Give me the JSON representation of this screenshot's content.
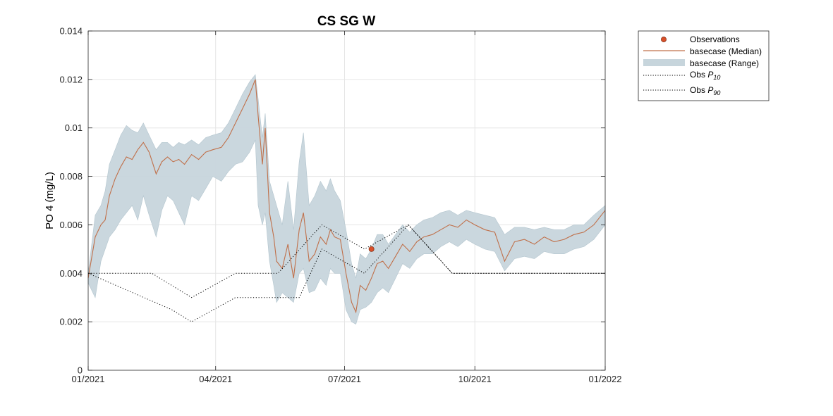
{
  "chart_data": {
    "type": "line",
    "title": "CS SG W",
    "xlabel": "",
    "ylabel": "PO 4 (mg/L)",
    "xlim": [
      "2021-01-01",
      "2022-01-01"
    ],
    "ylim": [
      0,
      0.014
    ],
    "x_ticks": [
      {
        "date": "2021-01-01",
        "label": "01/2021"
      },
      {
        "date": "2021-04-01",
        "label": "04/2021"
      },
      {
        "date": "2021-07-01",
        "label": "07/2021"
      },
      {
        "date": "2021-10-01",
        "label": "10/2021"
      },
      {
        "date": "2022-01-01",
        "label": "01/2022"
      }
    ],
    "y_ticks": [
      {
        "value": 0,
        "label": "0"
      },
      {
        "value": 0.002,
        "label": "0.002"
      },
      {
        "value": 0.004,
        "label": "0.004"
      },
      {
        "value": 0.006,
        "label": "0.006"
      },
      {
        "value": 0.008,
        "label": "0.008"
      },
      {
        "value": 0.01,
        "label": "0.01"
      },
      {
        "value": 0.012,
        "label": "0.012"
      },
      {
        "value": 0.014,
        "label": "0.014"
      }
    ],
    "grid": true,
    "legend_position": "outside-top-right",
    "colors": {
      "median": "#c0704a",
      "range": "#c7d5dc",
      "observation": "#d9502a",
      "obs_percentile": "#000000",
      "grid": "#e5e5e5"
    },
    "legend": {
      "observations": "Observations",
      "median": "basecase (Median)",
      "range": "basecase (Range)",
      "p10_prefix": "Obs ",
      "p10_symbol": "P",
      "p10_subscript": "10",
      "p90_prefix": "Obs ",
      "p90_symbol": "P",
      "p90_subscript": "90"
    },
    "series": [
      {
        "name": "basecase (Median)",
        "x": [
          "2021-01-01",
          "2021-01-06",
          "2021-01-10",
          "2021-01-13",
          "2021-01-16",
          "2021-01-20",
          "2021-01-24",
          "2021-01-28",
          "2021-02-01",
          "2021-02-05",
          "2021-02-09",
          "2021-02-13",
          "2021-02-18",
          "2021-02-22",
          "2021-02-26",
          "2021-03-02",
          "2021-03-06",
          "2021-03-10",
          "2021-03-15",
          "2021-03-20",
          "2021-03-25",
          "2021-03-30",
          "2021-04-05",
          "2021-04-10",
          "2021-04-15",
          "2021-04-20",
          "2021-04-25",
          "2021-04-29",
          "2021-05-01",
          "2021-05-04",
          "2021-05-06",
          "2021-05-09",
          "2021-05-12",
          "2021-05-14",
          "2021-05-18",
          "2021-05-22",
          "2021-05-26",
          "2021-05-30",
          "2021-06-02",
          "2021-06-06",
          "2021-06-10",
          "2021-06-14",
          "2021-06-18",
          "2021-06-21",
          "2021-06-24",
          "2021-06-28",
          "2021-07-02",
          "2021-07-06",
          "2021-07-09",
          "2021-07-12",
          "2021-07-16",
          "2021-07-20",
          "2021-07-24",
          "2021-07-28",
          "2021-08-01",
          "2021-08-06",
          "2021-08-11",
          "2021-08-16",
          "2021-08-21",
          "2021-08-26",
          "2021-09-01",
          "2021-09-07",
          "2021-09-13",
          "2021-09-19",
          "2021-09-25",
          "2021-10-01",
          "2021-10-08",
          "2021-10-15",
          "2021-10-22",
          "2021-10-29",
          "2021-11-05",
          "2021-11-12",
          "2021-11-19",
          "2021-11-26",
          "2021-12-03",
          "2021-12-10",
          "2021-12-17",
          "2021-12-24",
          "2022-01-01"
        ],
        "y": [
          0.0038,
          0.0055,
          0.006,
          0.0062,
          0.0072,
          0.0079,
          0.0084,
          0.0088,
          0.0087,
          0.0091,
          0.0094,
          0.009,
          0.0081,
          0.0086,
          0.0088,
          0.0086,
          0.0087,
          0.0085,
          0.0089,
          0.0087,
          0.009,
          0.0091,
          0.0092,
          0.0096,
          0.0102,
          0.0108,
          0.0114,
          0.012,
          0.0105,
          0.0085,
          0.01,
          0.0065,
          0.0055,
          0.0045,
          0.0042,
          0.0052,
          0.0038,
          0.0058,
          0.0065,
          0.0045,
          0.0048,
          0.0055,
          0.0052,
          0.0058,
          0.0055,
          0.0054,
          0.004,
          0.0028,
          0.0024,
          0.0035,
          0.0033,
          0.0038,
          0.0044,
          0.0045,
          0.0042,
          0.0047,
          0.0052,
          0.0049,
          0.0053,
          0.0055,
          0.0056,
          0.0058,
          0.006,
          0.0059,
          0.0062,
          0.006,
          0.0058,
          0.0057,
          0.0045,
          0.0053,
          0.0054,
          0.0052,
          0.0055,
          0.0053,
          0.0054,
          0.0056,
          0.0057,
          0.006,
          0.0066
        ]
      },
      {
        "name": "basecase (Range)",
        "x": [
          "2021-01-01",
          "2021-01-06",
          "2021-01-10",
          "2021-01-13",
          "2021-01-16",
          "2021-01-20",
          "2021-01-24",
          "2021-01-28",
          "2021-02-01",
          "2021-02-05",
          "2021-02-09",
          "2021-02-13",
          "2021-02-18",
          "2021-02-22",
          "2021-02-26",
          "2021-03-02",
          "2021-03-06",
          "2021-03-10",
          "2021-03-15",
          "2021-03-20",
          "2021-03-25",
          "2021-03-30",
          "2021-04-05",
          "2021-04-10",
          "2021-04-15",
          "2021-04-20",
          "2021-04-25",
          "2021-04-29",
          "2021-05-01",
          "2021-05-04",
          "2021-05-06",
          "2021-05-09",
          "2021-05-12",
          "2021-05-14",
          "2021-05-18",
          "2021-05-22",
          "2021-05-26",
          "2021-05-30",
          "2021-06-02",
          "2021-06-06",
          "2021-06-10",
          "2021-06-14",
          "2021-06-18",
          "2021-06-21",
          "2021-06-24",
          "2021-06-28",
          "2021-07-02",
          "2021-07-06",
          "2021-07-09",
          "2021-07-12",
          "2021-07-16",
          "2021-07-20",
          "2021-07-24",
          "2021-07-28",
          "2021-08-01",
          "2021-08-06",
          "2021-08-11",
          "2021-08-16",
          "2021-08-21",
          "2021-08-26",
          "2021-09-01",
          "2021-09-07",
          "2021-09-13",
          "2021-09-19",
          "2021-09-25",
          "2021-10-01",
          "2021-10-08",
          "2021-10-15",
          "2021-10-22",
          "2021-10-29",
          "2021-11-05",
          "2021-11-12",
          "2021-11-19",
          "2021-11-26",
          "2021-12-03",
          "2021-12-10",
          "2021-12-17",
          "2021-12-24",
          "2022-01-01"
        ],
        "lower": [
          0.0036,
          0.003,
          0.0045,
          0.005,
          0.0055,
          0.0058,
          0.0062,
          0.0065,
          0.0068,
          0.0062,
          0.0072,
          0.0064,
          0.0055,
          0.0066,
          0.0072,
          0.007,
          0.0065,
          0.006,
          0.0072,
          0.007,
          0.0075,
          0.008,
          0.0078,
          0.0082,
          0.0085,
          0.0086,
          0.009,
          0.0095,
          0.0068,
          0.006,
          0.0065,
          0.0045,
          0.0035,
          0.0028,
          0.0032,
          0.003,
          0.0028,
          0.004,
          0.0042,
          0.0032,
          0.0033,
          0.0038,
          0.0035,
          0.0042,
          0.004,
          0.004,
          0.0025,
          0.002,
          0.0019,
          0.0025,
          0.0026,
          0.0028,
          0.0032,
          0.0034,
          0.0032,
          0.0038,
          0.0044,
          0.0042,
          0.0046,
          0.0048,
          0.0048,
          0.0051,
          0.0053,
          0.0051,
          0.0054,
          0.0052,
          0.005,
          0.0049,
          0.0041,
          0.0046,
          0.0047,
          0.0046,
          0.0049,
          0.0048,
          0.0048,
          0.005,
          0.0051,
          0.0054,
          0.006
        ],
        "upper": [
          0.004,
          0.0064,
          0.0068,
          0.0074,
          0.0085,
          0.0091,
          0.0097,
          0.0101,
          0.0099,
          0.0098,
          0.0102,
          0.0097,
          0.0091,
          0.0094,
          0.0094,
          0.0092,
          0.0094,
          0.0093,
          0.0095,
          0.0093,
          0.0096,
          0.0097,
          0.0098,
          0.0102,
          0.0108,
          0.0114,
          0.0119,
          0.0122,
          0.0112,
          0.0096,
          0.0106,
          0.0078,
          0.0072,
          0.0068,
          0.006,
          0.0078,
          0.0058,
          0.0086,
          0.0098,
          0.0068,
          0.0072,
          0.0078,
          0.0074,
          0.0079,
          0.0074,
          0.007,
          0.0058,
          0.0044,
          0.0038,
          0.0048,
          0.0046,
          0.005,
          0.0056,
          0.0056,
          0.0052,
          0.0056,
          0.006,
          0.0057,
          0.006,
          0.0062,
          0.0063,
          0.0065,
          0.0066,
          0.0064,
          0.0066,
          0.0065,
          0.0064,
          0.0063,
          0.0056,
          0.0059,
          0.0059,
          0.0058,
          0.0059,
          0.0058,
          0.0058,
          0.006,
          0.006,
          0.0064,
          0.0068
        ]
      },
      {
        "name": "Observations",
        "x": [
          "2021-07-20"
        ],
        "y": [
          0.005
        ]
      },
      {
        "name": "Obs P10",
        "x": [
          "2021-01-01",
          "2021-03-01",
          "2021-03-15",
          "2021-04-15",
          "2021-05-15",
          "2021-05-30",
          "2021-06-15",
          "2021-07-15",
          "2021-08-15",
          "2021-09-15",
          "2022-01-01"
        ],
        "y": [
          0.004,
          0.0025,
          0.002,
          0.003,
          0.003,
          0.003,
          0.005,
          0.004,
          0.006,
          0.004,
          0.004
        ]
      },
      {
        "name": "Obs P90",
        "x": [
          "2021-01-01",
          "2021-02-15",
          "2021-03-15",
          "2021-04-15",
          "2021-05-15",
          "2021-06-15",
          "2021-07-15",
          "2021-08-15",
          "2021-09-15",
          "2022-01-01"
        ],
        "y": [
          0.004,
          0.004,
          0.003,
          0.004,
          0.004,
          0.006,
          0.005,
          0.006,
          0.004,
          0.004
        ]
      }
    ]
  }
}
